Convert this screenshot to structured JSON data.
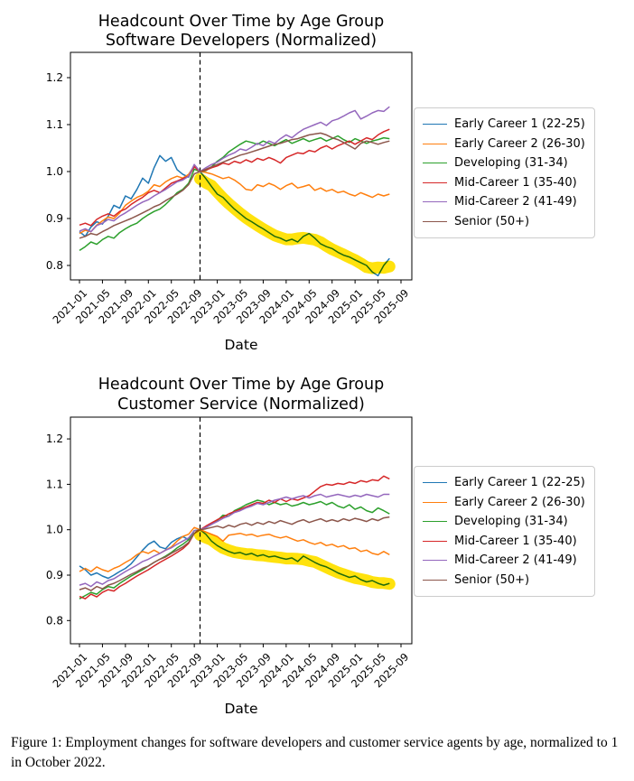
{
  "caption": "Figure 1: Employment changes for software developers and customer service agents by age, normalized to 1 in October 2022.",
  "chart_data": [
    {
      "type": "line",
      "title_line1": "Headcount Over Time by Age Group",
      "title_line2": "Software Developers (Normalized)",
      "xlabel": "Date",
      "x_start": "2021-01",
      "x_end": "2025-07",
      "frequency": "monthly",
      "x_tick_labels": [
        "2021-01",
        "2021-05",
        "2021-09",
        "2022-01",
        "2022-05",
        "2022-09",
        "2023-01",
        "2023-05",
        "2023-09",
        "2024-01",
        "2024-05",
        "2024-09",
        "2025-01",
        "2025-05",
        "2025-09"
      ],
      "y_tick_labels": [
        "0.8",
        "0.9",
        "1.0",
        "1.1",
        "1.2"
      ],
      "y_ticks": [
        0.8,
        0.9,
        1.0,
        1.1,
        1.2
      ],
      "ylim": [
        0.77,
        1.25
      ],
      "grid": false,
      "legend_position": "right",
      "vline_x": "2022-10",
      "normalized_to": "2022-10",
      "highlight": {
        "series": "Early Career 1 (22-25)",
        "color": "#ffe100",
        "style": "yellow highlighter band after vline"
      },
      "series": [
        {
          "name": "Early Career 1 (22-25)",
          "color": "#1f77b4",
          "values": [
            0.872,
            0.862,
            0.882,
            0.893,
            0.888,
            0.905,
            0.928,
            0.922,
            0.948,
            0.942,
            0.962,
            0.986,
            0.975,
            1.008,
            1.034,
            1.022,
            1.03,
            1.004,
            0.994,
            0.988,
            1.012,
            1.0,
            0.985,
            0.968,
            0.952,
            0.945,
            0.932,
            0.92,
            0.91,
            0.9,
            0.893,
            0.885,
            0.878,
            0.87,
            0.862,
            0.858,
            0.852,
            0.856,
            0.85,
            0.862,
            0.868,
            0.858,
            0.846,
            0.84,
            0.836,
            0.828,
            0.822,
            0.818,
            0.812,
            0.806,
            0.8,
            0.786,
            0.778,
            0.8,
            0.815
          ]
        },
        {
          "name": "Early Career 2 (26-30)",
          "color": "#ff7f0e",
          "values": [
            0.868,
            0.875,
            0.872,
            0.886,
            0.895,
            0.903,
            0.9,
            0.912,
            0.928,
            0.937,
            0.945,
            0.95,
            0.958,
            0.972,
            0.968,
            0.978,
            0.985,
            0.99,
            0.986,
            0.994,
            1.012,
            1.0,
            0.998,
            0.995,
            0.99,
            0.985,
            0.988,
            0.982,
            0.973,
            0.962,
            0.96,
            0.972,
            0.968,
            0.975,
            0.97,
            0.962,
            0.97,
            0.975,
            0.965,
            0.968,
            0.972,
            0.96,
            0.965,
            0.958,
            0.962,
            0.955,
            0.958,
            0.952,
            0.948,
            0.955,
            0.95,
            0.945,
            0.952,
            0.948,
            0.952
          ]
        },
        {
          "name": "Developing (31-34)",
          "color": "#2ca02c",
          "values": [
            0.832,
            0.84,
            0.85,
            0.845,
            0.855,
            0.862,
            0.858,
            0.87,
            0.878,
            0.885,
            0.89,
            0.9,
            0.908,
            0.915,
            0.92,
            0.93,
            0.942,
            0.955,
            0.962,
            0.975,
            1.005,
            1.0,
            1.002,
            1.01,
            1.022,
            1.03,
            1.042,
            1.05,
            1.058,
            1.065,
            1.062,
            1.058,
            1.065,
            1.06,
            1.055,
            1.062,
            1.068,
            1.06,
            1.065,
            1.07,
            1.064,
            1.068,
            1.072,
            1.065,
            1.07,
            1.076,
            1.068,
            1.062,
            1.07,
            1.065,
            1.06,
            1.065,
            1.068,
            1.072,
            1.07
          ]
        },
        {
          "name": "Mid-Career 1 (35-40)",
          "color": "#d62728",
          "values": [
            0.886,
            0.89,
            0.885,
            0.898,
            0.905,
            0.91,
            0.905,
            0.915,
            0.92,
            0.93,
            0.938,
            0.945,
            0.955,
            0.96,
            0.955,
            0.965,
            0.975,
            0.98,
            0.985,
            0.99,
            1.01,
            1.0,
            1.003,
            1.008,
            1.012,
            1.018,
            1.015,
            1.022,
            1.018,
            1.025,
            1.02,
            1.028,
            1.024,
            1.03,
            1.025,
            1.018,
            1.03,
            1.035,
            1.04,
            1.038,
            1.045,
            1.042,
            1.05,
            1.055,
            1.048,
            1.055,
            1.06,
            1.065,
            1.058,
            1.065,
            1.072,
            1.068,
            1.078,
            1.085,
            1.09
          ]
        },
        {
          "name": "Mid-Career 2 (41-49)",
          "color": "#9467bd",
          "values": [
            0.873,
            0.878,
            0.872,
            0.885,
            0.89,
            0.898,
            0.895,
            0.905,
            0.912,
            0.92,
            0.928,
            0.935,
            0.94,
            0.948,
            0.955,
            0.962,
            0.97,
            0.978,
            0.982,
            0.99,
            1.015,
            1.0,
            1.008,
            1.015,
            1.02,
            1.028,
            1.035,
            1.04,
            1.048,
            1.045,
            1.052,
            1.06,
            1.055,
            1.065,
            1.06,
            1.07,
            1.078,
            1.072,
            1.082,
            1.09,
            1.095,
            1.1,
            1.105,
            1.098,
            1.108,
            1.112,
            1.118,
            1.125,
            1.13,
            1.112,
            1.118,
            1.125,
            1.13,
            1.128,
            1.138
          ]
        },
        {
          "name": "Senior (50+)",
          "color": "#8c564b",
          "values": [
            0.858,
            0.862,
            0.868,
            0.865,
            0.872,
            0.878,
            0.885,
            0.89,
            0.895,
            0.9,
            0.906,
            0.912,
            0.918,
            0.925,
            0.93,
            0.938,
            0.945,
            0.952,
            0.96,
            0.972,
            0.995,
            1.0,
            1.005,
            1.01,
            1.015,
            1.02,
            1.025,
            1.03,
            1.035,
            1.038,
            1.042,
            1.046,
            1.05,
            1.054,
            1.058,
            1.06,
            1.064,
            1.068,
            1.07,
            1.074,
            1.078,
            1.08,
            1.082,
            1.078,
            1.072,
            1.068,
            1.062,
            1.055,
            1.048,
            1.06,
            1.065,
            1.062,
            1.058,
            1.062,
            1.065
          ]
        }
      ]
    },
    {
      "type": "line",
      "title_line1": "Headcount Over Time by Age Group",
      "title_line2": "Customer Service (Normalized)",
      "xlabel": "Date",
      "x_start": "2021-01",
      "x_end": "2025-07",
      "frequency": "monthly",
      "x_tick_labels": [
        "2021-01",
        "2021-05",
        "2021-09",
        "2022-01",
        "2022-05",
        "2022-09",
        "2023-01",
        "2023-05",
        "2023-09",
        "2024-01",
        "2024-05",
        "2024-09",
        "2025-01",
        "2025-05",
        "2025-09"
      ],
      "y_tick_labels": [
        "0.8",
        "0.9",
        "1.0",
        "1.1",
        "1.2"
      ],
      "y_ticks": [
        0.8,
        0.9,
        1.0,
        1.1,
        1.2
      ],
      "ylim": [
        0.75,
        1.25
      ],
      "grid": false,
      "legend_position": "right",
      "vline_x": "2022-10",
      "normalized_to": "2022-10",
      "highlight": {
        "series": "Early Career 1 (22-25)",
        "color": "#ffe100",
        "style": "yellow highlighter band after vline"
      },
      "series": [
        {
          "name": "Early Career 1 (22-25)",
          "color": "#1f77b4",
          "values": [
            0.92,
            0.912,
            0.9,
            0.905,
            0.898,
            0.893,
            0.9,
            0.908,
            0.915,
            0.925,
            0.94,
            0.955,
            0.968,
            0.975,
            0.962,
            0.958,
            0.972,
            0.98,
            0.985,
            0.978,
            0.998,
            1.0,
            0.99,
            0.975,
            0.965,
            0.958,
            0.952,
            0.948,
            0.95,
            0.945,
            0.948,
            0.942,
            0.945,
            0.94,
            0.942,
            0.938,
            0.935,
            0.938,
            0.93,
            0.942,
            0.935,
            0.928,
            0.922,
            0.918,
            0.912,
            0.905,
            0.9,
            0.895,
            0.898,
            0.89,
            0.885,
            0.888,
            0.882,
            0.878,
            0.882
          ]
        },
        {
          "name": "Early Career 2 (26-30)",
          "color": "#ff7f0e",
          "values": [
            0.908,
            0.915,
            0.908,
            0.918,
            0.912,
            0.908,
            0.915,
            0.92,
            0.928,
            0.935,
            0.945,
            0.952,
            0.948,
            0.955,
            0.948,
            0.955,
            0.962,
            0.975,
            0.985,
            0.99,
            1.005,
            1.0,
            0.995,
            0.99,
            0.985,
            0.975,
            0.988,
            0.99,
            0.992,
            0.988,
            0.99,
            0.985,
            0.988,
            0.99,
            0.985,
            0.982,
            0.985,
            0.98,
            0.975,
            0.978,
            0.972,
            0.968,
            0.972,
            0.965,
            0.968,
            0.962,
            0.965,
            0.958,
            0.96,
            0.952,
            0.955,
            0.948,
            0.945,
            0.952,
            0.945
          ]
        },
        {
          "name": "Developing (31-34)",
          "color": "#2ca02c",
          "values": [
            0.848,
            0.855,
            0.862,
            0.858,
            0.868,
            0.875,
            0.872,
            0.882,
            0.89,
            0.898,
            0.905,
            0.912,
            0.92,
            0.928,
            0.935,
            0.942,
            0.95,
            0.96,
            0.968,
            0.978,
            0.998,
            1.0,
            1.005,
            1.012,
            1.02,
            1.032,
            1.03,
            1.042,
            1.048,
            1.055,
            1.06,
            1.065,
            1.062,
            1.055,
            1.06,
            1.055,
            1.058,
            1.052,
            1.055,
            1.06,
            1.055,
            1.058,
            1.062,
            1.055,
            1.06,
            1.052,
            1.048,
            1.055,
            1.045,
            1.05,
            1.042,
            1.038,
            1.048,
            1.042,
            1.035
          ]
        },
        {
          "name": "Mid-Career 1 (35-40)",
          "color": "#d62728",
          "values": [
            0.853,
            0.848,
            0.858,
            0.852,
            0.862,
            0.868,
            0.865,
            0.875,
            0.882,
            0.89,
            0.898,
            0.905,
            0.912,
            0.92,
            0.928,
            0.935,
            0.942,
            0.95,
            0.958,
            0.97,
            0.992,
            1.0,
            1.008,
            1.015,
            1.022,
            1.028,
            1.035,
            1.04,
            1.045,
            1.05,
            1.055,
            1.06,
            1.058,
            1.065,
            1.06,
            1.068,
            1.062,
            1.068,
            1.065,
            1.07,
            1.075,
            1.085,
            1.095,
            1.1,
            1.098,
            1.102,
            1.1,
            1.105,
            1.102,
            1.108,
            1.105,
            1.11,
            1.108,
            1.118,
            1.112
          ]
        },
        {
          "name": "Mid-Career 2 (41-49)",
          "color": "#9467bd",
          "values": [
            0.878,
            0.882,
            0.875,
            0.885,
            0.88,
            0.888,
            0.892,
            0.9,
            0.908,
            0.915,
            0.922,
            0.93,
            0.935,
            0.942,
            0.948,
            0.955,
            0.96,
            0.968,
            0.975,
            0.982,
            0.998,
            1.0,
            1.005,
            1.012,
            1.018,
            1.025,
            1.03,
            1.038,
            1.042,
            1.048,
            1.052,
            1.058,
            1.055,
            1.06,
            1.065,
            1.068,
            1.072,
            1.068,
            1.072,
            1.075,
            1.07,
            1.075,
            1.078,
            1.072,
            1.075,
            1.078,
            1.075,
            1.072,
            1.076,
            1.073,
            1.078,
            1.075,
            1.072,
            1.078,
            1.078
          ]
        },
        {
          "name": "Senior (50+)",
          "color": "#8c564b",
          "values": [
            0.868,
            0.872,
            0.866,
            0.875,
            0.87,
            0.878,
            0.882,
            0.888,
            0.895,
            0.902,
            0.908,
            0.915,
            0.92,
            0.928,
            0.935,
            0.94,
            0.948,
            0.955,
            0.962,
            0.972,
            0.992,
            1.0,
            1.002,
            1.005,
            1.008,
            1.004,
            1.01,
            1.006,
            1.012,
            1.015,
            1.01,
            1.016,
            1.012,
            1.018,
            1.014,
            1.02,
            1.016,
            1.012,
            1.018,
            1.022,
            1.016,
            1.02,
            1.024,
            1.018,
            1.022,
            1.018,
            1.024,
            1.02,
            1.025,
            1.022,
            1.018,
            1.024,
            1.02,
            1.026,
            1.028
          ]
        }
      ]
    }
  ]
}
